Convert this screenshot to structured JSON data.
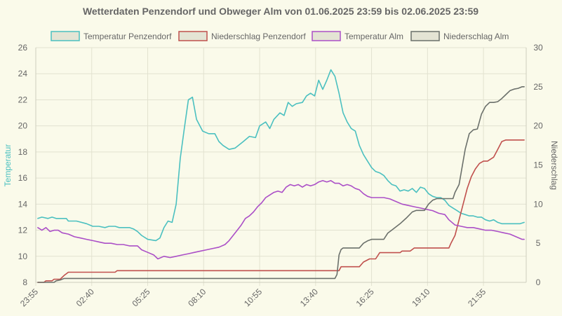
{
  "chart_data": {
    "type": "line",
    "title": "Wetterdaten Penzendorf und Obweger Alm von 01.06.2025 23:59 bis 02.06.2025 23:59",
    "ylabel_left": "Temperatur",
    "ylabel_right": "Niederschlag",
    "y_left_range": [
      8,
      26
    ],
    "y_left_ticks": [
      "8",
      "10",
      "12",
      "14",
      "16",
      "18",
      "20",
      "22",
      "24",
      "26"
    ],
    "y_right_range": [
      0,
      30
    ],
    "y_right_ticks": [
      "0",
      "5",
      "10",
      "15",
      "20",
      "25",
      "30"
    ],
    "x_range_hours": [
      0,
      24.1
    ],
    "x_ticks": [
      {
        "label": "23:55",
        "hour": 0
      },
      {
        "label": "02:40",
        "hour": 2.75
      },
      {
        "label": "05:25",
        "hour": 5.5
      },
      {
        "label": "08:10",
        "hour": 8.25
      },
      {
        "label": "10:55",
        "hour": 11.0
      },
      {
        "label": "13:40",
        "hour": 13.75
      },
      {
        "label": "16:25",
        "hour": 16.5
      },
      {
        "label": "19:10",
        "hour": 19.25
      },
      {
        "label": "21:55",
        "hour": 22.0
      }
    ],
    "grid": true,
    "legend_position": "top",
    "series": [
      {
        "name": "Temperatur Penzendorf",
        "axis": "left",
        "color": "#4bc0c0",
        "points": [
          [
            0.1,
            12.9
          ],
          [
            0.3,
            13.0
          ],
          [
            0.6,
            12.9
          ],
          [
            0.8,
            13.0
          ],
          [
            1.0,
            12.9
          ],
          [
            1.3,
            12.9
          ],
          [
            1.5,
            12.9
          ],
          [
            1.6,
            12.7
          ],
          [
            2.0,
            12.7
          ],
          [
            2.5,
            12.5
          ],
          [
            2.8,
            12.3
          ],
          [
            3.1,
            12.3
          ],
          [
            3.4,
            12.2
          ],
          [
            3.6,
            12.3
          ],
          [
            3.9,
            12.3
          ],
          [
            4.1,
            12.2
          ],
          [
            4.4,
            12.2
          ],
          [
            4.6,
            12.2
          ],
          [
            4.8,
            12.1
          ],
          [
            5.0,
            11.9
          ],
          [
            5.2,
            11.6
          ],
          [
            5.5,
            11.3
          ],
          [
            5.9,
            11.2
          ],
          [
            6.1,
            11.4
          ],
          [
            6.3,
            12.2
          ],
          [
            6.5,
            12.7
          ],
          [
            6.7,
            12.6
          ],
          [
            6.9,
            14.0
          ],
          [
            7.1,
            17.5
          ],
          [
            7.3,
            19.8
          ],
          [
            7.5,
            22.0
          ],
          [
            7.7,
            22.2
          ],
          [
            7.9,
            20.5
          ],
          [
            8.2,
            19.6
          ],
          [
            8.5,
            19.4
          ],
          [
            8.8,
            19.4
          ],
          [
            9.0,
            18.8
          ],
          [
            9.2,
            18.5
          ],
          [
            9.5,
            18.2
          ],
          [
            9.8,
            18.3
          ],
          [
            10.2,
            18.8
          ],
          [
            10.5,
            19.2
          ],
          [
            10.8,
            19.1
          ],
          [
            11.0,
            20.0
          ],
          [
            11.3,
            20.3
          ],
          [
            11.5,
            19.8
          ],
          [
            11.7,
            20.5
          ],
          [
            12.0,
            21.0
          ],
          [
            12.2,
            20.8
          ],
          [
            12.4,
            21.8
          ],
          [
            12.6,
            21.5
          ],
          [
            12.8,
            21.7
          ],
          [
            13.1,
            21.8
          ],
          [
            13.3,
            22.3
          ],
          [
            13.5,
            22.5
          ],
          [
            13.7,
            22.3
          ],
          [
            13.9,
            23.5
          ],
          [
            14.1,
            22.8
          ],
          [
            14.3,
            23.5
          ],
          [
            14.5,
            24.3
          ],
          [
            14.7,
            23.8
          ],
          [
            14.9,
            22.5
          ],
          [
            15.1,
            21.0
          ],
          [
            15.3,
            20.3
          ],
          [
            15.5,
            19.8
          ],
          [
            15.7,
            19.6
          ],
          [
            15.9,
            18.5
          ],
          [
            16.1,
            17.8
          ],
          [
            16.3,
            17.3
          ],
          [
            16.5,
            16.8
          ],
          [
            16.7,
            16.5
          ],
          [
            16.9,
            16.4
          ],
          [
            17.1,
            16.2
          ],
          [
            17.3,
            15.8
          ],
          [
            17.5,
            15.5
          ],
          [
            17.7,
            15.4
          ],
          [
            17.9,
            15.0
          ],
          [
            18.1,
            15.1
          ],
          [
            18.3,
            15.0
          ],
          [
            18.5,
            15.2
          ],
          [
            18.7,
            14.9
          ],
          [
            18.9,
            15.3
          ],
          [
            19.1,
            15.2
          ],
          [
            19.3,
            14.8
          ],
          [
            19.5,
            14.6
          ],
          [
            19.7,
            14.5
          ],
          [
            19.9,
            14.5
          ],
          [
            20.1,
            14.3
          ],
          [
            20.3,
            13.9
          ],
          [
            20.5,
            13.7
          ],
          [
            20.7,
            13.5
          ],
          [
            20.9,
            13.3
          ],
          [
            21.1,
            13.2
          ],
          [
            21.3,
            13.1
          ],
          [
            21.5,
            13.1
          ],
          [
            21.7,
            13.0
          ],
          [
            21.9,
            13.0
          ],
          [
            22.1,
            12.8
          ],
          [
            22.3,
            12.7
          ],
          [
            22.5,
            12.8
          ],
          [
            22.7,
            12.6
          ],
          [
            22.9,
            12.5
          ],
          [
            23.2,
            12.5
          ],
          [
            23.5,
            12.5
          ],
          [
            23.8,
            12.5
          ],
          [
            24.0,
            12.6
          ]
        ]
      },
      {
        "name": "Niederschlag Penzendorf",
        "axis": "right",
        "color": "#c0504d",
        "points": [
          [
            0.1,
            0.0
          ],
          [
            0.4,
            0.0
          ],
          [
            0.5,
            0.2
          ],
          [
            0.8,
            0.2
          ],
          [
            0.9,
            0.4
          ],
          [
            1.2,
            0.4
          ],
          [
            1.4,
            0.9
          ],
          [
            1.5,
            1.1
          ],
          [
            1.6,
            1.3
          ],
          [
            3.9,
            1.3
          ],
          [
            4.0,
            1.5
          ],
          [
            14.9,
            1.5
          ],
          [
            15.0,
            2.0
          ],
          [
            15.9,
            2.0
          ],
          [
            16.1,
            2.6
          ],
          [
            16.4,
            3.0
          ],
          [
            16.7,
            3.0
          ],
          [
            16.9,
            3.8
          ],
          [
            17.9,
            3.8
          ],
          [
            18.0,
            4.0
          ],
          [
            18.4,
            4.0
          ],
          [
            18.6,
            4.4
          ],
          [
            20.3,
            4.4
          ],
          [
            20.4,
            5.0
          ],
          [
            20.6,
            6.0
          ],
          [
            20.8,
            8.0
          ],
          [
            21.0,
            10.0
          ],
          [
            21.2,
            12.0
          ],
          [
            21.4,
            13.5
          ],
          [
            21.6,
            14.5
          ],
          [
            21.8,
            15.2
          ],
          [
            22.0,
            15.5
          ],
          [
            22.2,
            15.5
          ],
          [
            22.5,
            16.0
          ],
          [
            22.7,
            17.0
          ],
          [
            22.9,
            18.0
          ],
          [
            23.1,
            18.2
          ],
          [
            23.6,
            18.2
          ],
          [
            24.0,
            18.2
          ]
        ]
      },
      {
        "name": "Temperatur Alm",
        "axis": "left",
        "color": "#ab4fc7",
        "points": [
          [
            0.1,
            12.2
          ],
          [
            0.3,
            12.0
          ],
          [
            0.5,
            12.2
          ],
          [
            0.7,
            11.9
          ],
          [
            0.9,
            12.0
          ],
          [
            1.1,
            12.0
          ],
          [
            1.3,
            11.8
          ],
          [
            1.6,
            11.7
          ],
          [
            1.9,
            11.5
          ],
          [
            2.2,
            11.4
          ],
          [
            2.5,
            11.3
          ],
          [
            2.8,
            11.2
          ],
          [
            3.1,
            11.1
          ],
          [
            3.4,
            11.0
          ],
          [
            3.7,
            11.0
          ],
          [
            4.0,
            10.9
          ],
          [
            4.3,
            10.9
          ],
          [
            4.6,
            10.8
          ],
          [
            5.0,
            10.8
          ],
          [
            5.2,
            10.5
          ],
          [
            5.5,
            10.3
          ],
          [
            5.8,
            10.1
          ],
          [
            6.0,
            9.8
          ],
          [
            6.3,
            10.0
          ],
          [
            6.6,
            9.9
          ],
          [
            6.9,
            10.0
          ],
          [
            7.2,
            10.1
          ],
          [
            7.5,
            10.2
          ],
          [
            7.8,
            10.3
          ],
          [
            8.1,
            10.4
          ],
          [
            8.4,
            10.5
          ],
          [
            8.7,
            10.6
          ],
          [
            9.0,
            10.7
          ],
          [
            9.3,
            10.9
          ],
          [
            9.5,
            11.2
          ],
          [
            9.7,
            11.6
          ],
          [
            9.9,
            12.0
          ],
          [
            10.1,
            12.4
          ],
          [
            10.3,
            12.9
          ],
          [
            10.5,
            13.1
          ],
          [
            10.7,
            13.4
          ],
          [
            10.9,
            13.8
          ],
          [
            11.1,
            14.1
          ],
          [
            11.3,
            14.5
          ],
          [
            11.5,
            14.7
          ],
          [
            11.7,
            14.9
          ],
          [
            11.9,
            15.0
          ],
          [
            12.1,
            14.9
          ],
          [
            12.3,
            15.3
          ],
          [
            12.5,
            15.5
          ],
          [
            12.7,
            15.4
          ],
          [
            12.9,
            15.5
          ],
          [
            13.1,
            15.3
          ],
          [
            13.3,
            15.5
          ],
          [
            13.5,
            15.4
          ],
          [
            13.7,
            15.5
          ],
          [
            13.9,
            15.7
          ],
          [
            14.1,
            15.8
          ],
          [
            14.3,
            15.7
          ],
          [
            14.5,
            15.8
          ],
          [
            14.7,
            15.6
          ],
          [
            14.9,
            15.6
          ],
          [
            15.1,
            15.4
          ],
          [
            15.3,
            15.5
          ],
          [
            15.5,
            15.4
          ],
          [
            15.7,
            15.2
          ],
          [
            15.9,
            15.1
          ],
          [
            16.1,
            14.8
          ],
          [
            16.3,
            14.6
          ],
          [
            16.5,
            14.5
          ],
          [
            16.8,
            14.5
          ],
          [
            17.1,
            14.5
          ],
          [
            17.4,
            14.4
          ],
          [
            17.7,
            14.2
          ],
          [
            18.0,
            14.0
          ],
          [
            18.3,
            13.9
          ],
          [
            18.6,
            13.8
          ],
          [
            18.9,
            13.7
          ],
          [
            19.2,
            13.6
          ],
          [
            19.5,
            13.5
          ],
          [
            19.8,
            13.3
          ],
          [
            20.1,
            13.2
          ],
          [
            20.3,
            12.8
          ],
          [
            20.6,
            12.4
          ],
          [
            20.9,
            12.3
          ],
          [
            21.2,
            12.2
          ],
          [
            21.5,
            12.2
          ],
          [
            21.8,
            12.1
          ],
          [
            22.1,
            12.0
          ],
          [
            22.4,
            12.0
          ],
          [
            22.7,
            11.9
          ],
          [
            23.0,
            11.8
          ],
          [
            23.3,
            11.7
          ],
          [
            23.6,
            11.5
          ],
          [
            23.9,
            11.3
          ],
          [
            24.0,
            11.3
          ]
        ]
      },
      {
        "name": "Niederschlag Alm",
        "axis": "right",
        "color": "#6b706b",
        "points": [
          [
            0.1,
            0.0
          ],
          [
            0.9,
            0.0
          ],
          [
            1.0,
            0.2
          ],
          [
            1.2,
            0.3
          ],
          [
            1.4,
            0.5
          ],
          [
            1.6,
            0.5
          ],
          [
            14.7,
            0.5
          ],
          [
            14.8,
            1.0
          ],
          [
            14.9,
            3.5
          ],
          [
            15.0,
            4.2
          ],
          [
            15.1,
            4.4
          ],
          [
            15.9,
            4.4
          ],
          [
            16.1,
            5.0
          ],
          [
            16.3,
            5.3
          ],
          [
            16.5,
            5.5
          ],
          [
            17.1,
            5.5
          ],
          [
            17.3,
            6.3
          ],
          [
            17.5,
            6.7
          ],
          [
            17.9,
            7.5
          ],
          [
            18.2,
            8.2
          ],
          [
            18.5,
            9.0
          ],
          [
            18.7,
            9.2
          ],
          [
            19.1,
            9.2
          ],
          [
            19.3,
            10.0
          ],
          [
            19.5,
            10.5
          ],
          [
            19.7,
            10.7
          ],
          [
            20.5,
            10.7
          ],
          [
            20.6,
            11.5
          ],
          [
            20.8,
            12.5
          ],
          [
            20.9,
            14.0
          ],
          [
            21.1,
            17.0
          ],
          [
            21.3,
            19.0
          ],
          [
            21.5,
            19.5
          ],
          [
            21.7,
            19.6
          ],
          [
            21.9,
            21.5
          ],
          [
            22.1,
            22.5
          ],
          [
            22.3,
            23.0
          ],
          [
            22.5,
            23.0
          ],
          [
            22.7,
            23.1
          ],
          [
            22.9,
            23.5
          ],
          [
            23.1,
            24.0
          ],
          [
            23.3,
            24.5
          ],
          [
            23.5,
            24.7
          ],
          [
            23.7,
            24.8
          ],
          [
            23.9,
            25.0
          ],
          [
            24.0,
            25.0
          ]
        ]
      }
    ]
  }
}
